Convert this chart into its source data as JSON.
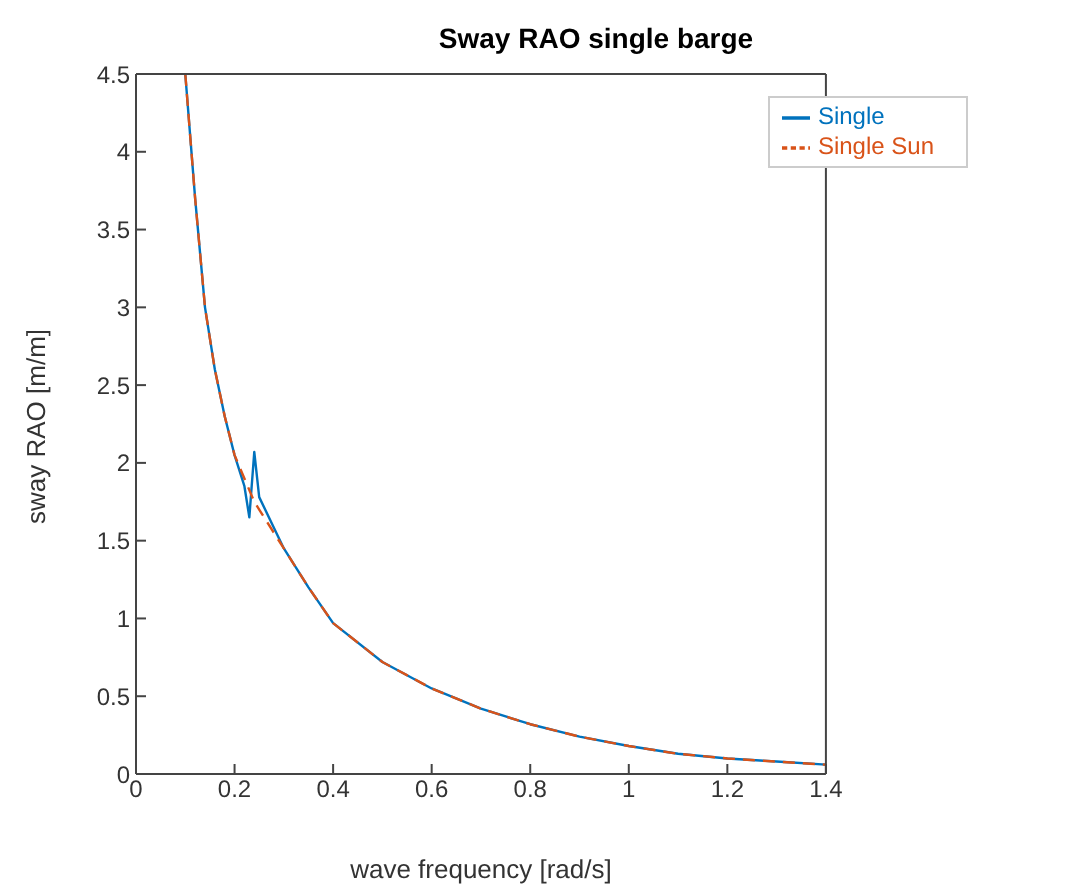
{
  "chart_data": {
    "type": "line",
    "title": "Sway RAO single barge",
    "xlabel": "wave frequency [rad/s]",
    "ylabel": "sway RAO [m/m]",
    "xlim": [
      0,
      1.4
    ],
    "xticks": [
      0,
      0.2,
      0.4,
      0.6,
      0.8,
      1,
      1.2,
      1.4
    ],
    "ylim": [
      0,
      4.5
    ],
    "yticks": [
      0,
      0.5,
      1,
      1.5,
      2,
      2.5,
      3,
      3.5,
      4,
      4.5
    ],
    "grid": false,
    "legend": "top right",
    "marker": "none",
    "series": [
      {
        "name": "Single",
        "color": "#0072bd",
        "line_style": "solid",
        "x": [
          0.1,
          0.12,
          0.14,
          0.16,
          0.18,
          0.2,
          0.22,
          0.23,
          0.24,
          0.25,
          0.3,
          0.35,
          0.4,
          0.5,
          0.6,
          0.7,
          0.8,
          0.9,
          1.0,
          1.1,
          1.2,
          1.3,
          1.4
        ],
        "values": [
          4.5,
          3.7,
          3.0,
          2.6,
          2.3,
          2.05,
          1.85,
          1.65,
          2.07,
          1.78,
          1.45,
          1.2,
          0.97,
          0.72,
          0.55,
          0.42,
          0.32,
          0.24,
          0.18,
          0.13,
          0.1,
          0.08,
          0.06
        ]
      },
      {
        "name": "Single Sun",
        "color": "#d95319",
        "line_style": "dashed",
        "x": [
          0.1,
          0.12,
          0.14,
          0.16,
          0.18,
          0.2,
          0.22,
          0.24,
          0.25,
          0.3,
          0.35,
          0.4,
          0.5,
          0.6,
          0.7,
          0.8,
          0.9,
          1.0,
          1.1,
          1.2,
          1.3,
          1.4
        ],
        "values": [
          4.5,
          3.7,
          3.0,
          2.6,
          2.3,
          2.05,
          1.9,
          1.75,
          1.7,
          1.45,
          1.2,
          0.97,
          0.72,
          0.55,
          0.42,
          0.32,
          0.24,
          0.18,
          0.13,
          0.1,
          0.08,
          0.06
        ]
      }
    ]
  }
}
